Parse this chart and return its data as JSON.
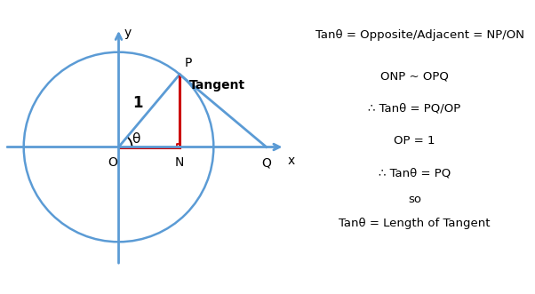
{
  "theta_deg": 50,
  "circle_color": "#5b9bd5",
  "circle_lw": 1.8,
  "axis_color": "#5b9bd5",
  "axis_lw": 2.0,
  "red_color": "#cc0000",
  "red_lw": 2.2,
  "blue_lw": 2.0,
  "label_O": "O",
  "label_N": "N",
  "label_P": "P",
  "label_Q": "Q",
  "label_x": "x",
  "label_y": "y",
  "label_1": "1",
  "label_theta": "θ",
  "label_tangent": "Tangent",
  "text_line1": "Tanθ = Opposite/Adjacent = NP/ON",
  "text_line2": "ONP ~ OPQ",
  "text_line3": "∴ Tanθ = PQ/OP",
  "text_line4": "OP = 1",
  "text_line5": "∴ Tanθ = PQ",
  "text_line6": "so",
  "text_line7": "Tanθ = Length of Tangent",
  "figsize": [
    6.02,
    3.31
  ],
  "dpi": 100
}
